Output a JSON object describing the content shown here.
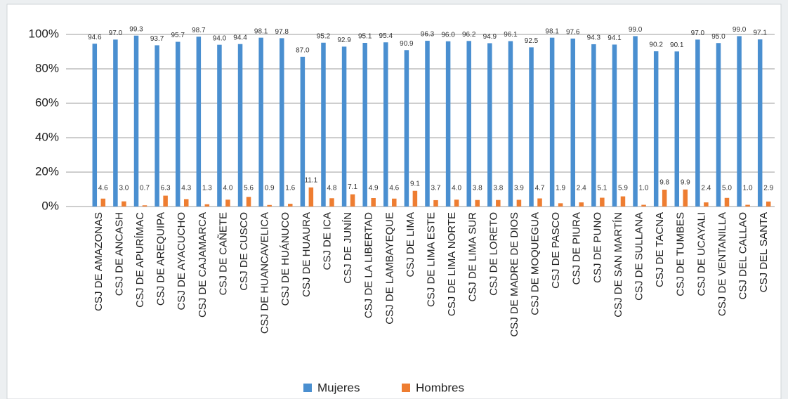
{
  "chart_data": {
    "type": "bar",
    "categories": [
      "CSJ DE AMAZONAS",
      "CSJ DE ANCASH",
      "CSJ DE APURÍMAC",
      "CSJ DE AREQUIPA",
      "CSJ DE AYACUCHO",
      "CSJ DE CAJAMARCA",
      "CSJ DE CAÑETE",
      "CSJ DE CUSCO",
      "CSJ DE HUANCAVELICA",
      "CSJ DE HUÁNUCO",
      "CSJ DE HUAURA",
      "CSJ DE ICA",
      "CSJ DE JUNÍN",
      "CSJ DE LA LIBERTAD",
      "CSJ DE LAMBAYEQUE",
      "CSJ DE LIMA",
      "CSJ DE LIMA ESTE",
      "CSJ DE LIMA NORTE",
      "CSJ DE LIMA SUR",
      "CSJ DE LORETO",
      "CSJ DE MADRE DE DIOS",
      "CSJ DE MOQUEGUA",
      "CSJ DE PASCO",
      "CSJ DE PIURA",
      "CSJ DE PUNO",
      "CSJ DE SAN MARTÍN",
      "CSJ DE SULLANA",
      "CSJ DE TACNA",
      "CSJ DE TUMBES",
      "CSJ DE UCAYALI",
      "CSJ DE VENTANILLA",
      "CSJ DEL CALLAO",
      "CSJ DEL SANTA"
    ],
    "series": [
      {
        "name": "Mujeres",
        "color": "#4a8fd0",
        "values": [
          94.6,
          97.0,
          99.3,
          93.7,
          95.7,
          98.7,
          94.0,
          94.4,
          98.1,
          97.8,
          87.0,
          95.2,
          92.9,
          95.1,
          95.4,
          90.9,
          96.3,
          96.0,
          96.2,
          94.9,
          96.1,
          92.5,
          98.1,
          97.6,
          94.3,
          94.1,
          99.0,
          90.2,
          90.1,
          97.0,
          95.0,
          99.0,
          97.1
        ],
        "value_labels": [
          "94.6",
          "97.0",
          "99.3",
          "93.7",
          "95.7",
          "98.7",
          "94.0",
          "94.4",
          "98.1",
          "97.8",
          "87.0",
          "95.2",
          "92.9",
          "95.1",
          "95.4",
          "90.9",
          "96.3",
          "96.0",
          "96.2",
          "94.9",
          "96.1",
          "92.5",
          "98.1",
          "97.6",
          "94.3",
          "94.1",
          "99.0",
          "90.2",
          "90.1",
          "97.0",
          "95.0",
          "99.0",
          "97.1"
        ]
      },
      {
        "name": "Hombres",
        "color": "#ee7d31",
        "values": [
          4.6,
          3.0,
          0.7,
          6.3,
          4.3,
          1.3,
          4.0,
          5.6,
          0.9,
          1.6,
          11.1,
          4.8,
          7.1,
          4.9,
          4.6,
          9.1,
          3.7,
          4.0,
          3.8,
          3.8,
          3.9,
          4.7,
          1.9,
          2.4,
          5.1,
          5.9,
          1.0,
          9.8,
          9.9,
          2.4,
          5.0,
          1.0,
          2.9
        ],
        "value_labels": [
          "4.6",
          "3.0",
          "0.7",
          "6.3",
          "4.3",
          "1.3",
          "4.0",
          "5.6",
          "0.9",
          "1.6",
          "11.1",
          "4.8",
          "7.1",
          "4.9",
          "4.6",
          "9.1",
          "3.7",
          "4.0",
          "3.8",
          "3.8",
          "3.9",
          "4.7",
          "1.9",
          "2.4",
          "5.1",
          "5.9",
          "1.0",
          "9.8",
          "9.9",
          "2.4",
          "5.0",
          "1.0",
          "2.9"
        ]
      }
    ],
    "ylim": [
      0,
      100
    ],
    "yticks": [
      {
        "value": 0,
        "label": "0%"
      },
      {
        "value": 20,
        "label": "20%"
      },
      {
        "value": 40,
        "label": "40%"
      },
      {
        "value": 60,
        "label": "60%"
      },
      {
        "value": 80,
        "label": "80%"
      },
      {
        "value": 100,
        "label": "100%"
      }
    ],
    "grid": true,
    "legend": "bottom"
  }
}
